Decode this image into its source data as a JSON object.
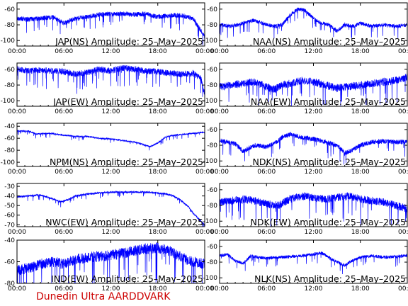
{
  "footer": "Dunedin Ultra AARDDVARK",
  "colors": {
    "trace": "#0000ff",
    "axes": "#000000",
    "footer": "#cc0000"
  },
  "x_tick_labels": [
    "00:00",
    "06:00",
    "12:00",
    "18:00",
    "00:00"
  ],
  "chart_data": [
    {
      "type": "line",
      "title": "JAP(NS) Amplitude: 25–May–2025",
      "ylim": [
        -107,
        -52
      ],
      "yticks": [
        -100,
        -80,
        -60
      ],
      "noise": 3.0,
      "series": [
        {
          "x": [
            0,
            1.5,
            3,
            4.5,
            6,
            7.5,
            9,
            10.5,
            12,
            13.5,
            15,
            16.5,
            18,
            19.5,
            21,
            22.5,
            24
          ],
          "y": [
            -72,
            -73,
            -72,
            -70,
            -78,
            -72,
            -70,
            -67,
            -66,
            -66,
            -67,
            -66,
            -70,
            -68,
            -68,
            -72,
            -95
          ]
        }
      ]
    },
    {
      "type": "line",
      "title": "NAA(NS) Amplitude: 25–May–2025",
      "ylim": [
        -107,
        -52
      ],
      "yticks": [
        -100,
        -80,
        -60
      ],
      "noise": 2.5,
      "series": [
        {
          "x": [
            0,
            1.5,
            3,
            4.5,
            6,
            7,
            8,
            9,
            10,
            11,
            12,
            13,
            14,
            15,
            16,
            17,
            18,
            19.5,
            21,
            22.5,
            24
          ],
          "y": [
            -80,
            -82,
            -78,
            -74,
            -80,
            -82,
            -80,
            -68,
            -60,
            -62,
            -72,
            -78,
            -80,
            -88,
            -80,
            -82,
            -78,
            -82,
            -80,
            -82,
            -80
          ]
        }
      ]
    },
    {
      "type": "line",
      "title": "JAP(EW) Amplitude: 25–May–2025",
      "ylim": [
        -107,
        -52
      ],
      "yticks": [
        -100,
        -80,
        -60
      ],
      "noise": 4.0,
      "series": [
        {
          "x": [
            0,
            1.5,
            3,
            4.5,
            6,
            7.5,
            9,
            10.5,
            12,
            13.5,
            15,
            16.5,
            18,
            19.5,
            21,
            22.5,
            23.5,
            24
          ],
          "y": [
            -60,
            -62,
            -61,
            -62,
            -63,
            -66,
            -64,
            -60,
            -62,
            -58,
            -60,
            -62,
            -63,
            -65,
            -66,
            -65,
            -72,
            -92
          ]
        }
      ]
    },
    {
      "type": "line",
      "title": "NAA(EW) Amplitude: 25–May–2025",
      "ylim": [
        -107,
        -52
      ],
      "yticks": [
        -100,
        -80,
        -60
      ],
      "noise": 5.0,
      "series": [
        {
          "x": [
            0,
            1.5,
            3,
            4.5,
            6,
            7,
            8,
            9,
            10.5,
            12,
            13.5,
            15,
            16.5,
            18,
            19.5,
            21,
            22.5,
            24
          ],
          "y": [
            -82,
            -80,
            -78,
            -76,
            -82,
            -86,
            -80,
            -78,
            -74,
            -76,
            -80,
            -84,
            -82,
            -80,
            -78,
            -76,
            -74,
            -70
          ]
        }
      ]
    },
    {
      "type": "line",
      "title": "NPM(NS) Amplitude: 25–May–2025",
      "ylim": [
        -107,
        -35
      ],
      "yticks": [
        -100,
        -80,
        -60,
        -40
      ],
      "noise": 1.2,
      "series": [
        {
          "x": [
            0,
            1.5,
            2.5,
            3.5,
            4.5,
            6,
            7.5,
            9,
            10.5,
            12,
            13.5,
            15,
            16,
            17,
            18,
            19,
            20,
            21,
            22.5,
            24
          ],
          "y": [
            -48,
            -48,
            -53,
            -52,
            -52,
            -55,
            -57,
            -57,
            -60,
            -61,
            -64,
            -66,
            -70,
            -74,
            -68,
            -58,
            -55,
            -54,
            -52,
            -50
          ]
        }
      ]
    },
    {
      "type": "line",
      "title": "NDK(NS) Amplitude: 25–May–2025",
      "ylim": [
        -107,
        -52
      ],
      "yticks": [
        -100,
        -80,
        -60
      ],
      "noise": 3.0,
      "series": [
        {
          "x": [
            0,
            1,
            2,
            3,
            4.5,
            6,
            7,
            8,
            9,
            10.5,
            12,
            13.5,
            15,
            16,
            17,
            18,
            19.5,
            21,
            22.5,
            24
          ],
          "y": [
            -74,
            -76,
            -78,
            -88,
            -80,
            -82,
            -78,
            -70,
            -66,
            -70,
            -72,
            -76,
            -80,
            -90,
            -86,
            -80,
            -76,
            -75,
            -76,
            -76
          ]
        }
      ]
    },
    {
      "type": "line",
      "title": "NWC(EW) Amplitude: 25–May–2025",
      "ylim": [
        -72,
        -27
      ],
      "yticks": [
        -70,
        -60,
        -50,
        -40,
        -30
      ],
      "noise": 1.0,
      "series": [
        {
          "x": [
            0,
            1.5,
            3,
            4.5,
            5.5,
            6.5,
            7.5,
            9,
            10.5,
            12,
            13.5,
            15,
            16.5,
            18,
            19,
            20,
            21,
            22,
            22.5,
            23,
            23.5,
            24
          ],
          "y": [
            -41,
            -40,
            -39,
            -43,
            -46,
            -44,
            -40,
            -38,
            -37,
            -36,
            -36,
            -36,
            -36,
            -37,
            -38,
            -40,
            -45,
            -52,
            -58,
            -62,
            -66,
            -70
          ]
        }
      ]
    },
    {
      "type": "line",
      "title": "NDK(EW) Amplitude: 25–May–2025",
      "ylim": [
        -107,
        -52
      ],
      "yticks": [
        -100,
        -80,
        -60
      ],
      "noise": 5.0,
      "series": [
        {
          "x": [
            0,
            1.5,
            3,
            4.5,
            6,
            7.5,
            9,
            10.5,
            12,
            13.5,
            15,
            16.5,
            18,
            19.5,
            21,
            22.5,
            24
          ],
          "y": [
            -76,
            -74,
            -72,
            -74,
            -78,
            -80,
            -72,
            -68,
            -70,
            -72,
            -70,
            -68,
            -72,
            -74,
            -76,
            -80,
            -84
          ]
        }
      ]
    },
    {
      "type": "line",
      "title": "IND(EW) Amplitude: 25–May–2025",
      "ylim": [
        -80,
        -40
      ],
      "yticks": [
        -80,
        -60,
        -40
      ],
      "noise": 5.0,
      "series": [
        {
          "x": [
            0,
            1.5,
            3,
            4.5,
            6,
            7.5,
            9,
            10.5,
            12,
            13.5,
            15,
            16.5,
            18,
            19.5,
            21,
            22.5,
            24
          ],
          "y": [
            -68,
            -66,
            -62,
            -60,
            -62,
            -58,
            -56,
            -55,
            -54,
            -52,
            -50,
            -48,
            -47,
            -50,
            -56,
            -60,
            -62
          ]
        }
      ]
    },
    {
      "type": "line",
      "title": "NLK(NS) Amplitude: 25–May–2025",
      "ylim": [
        -107,
        -52
      ],
      "yticks": [
        -100,
        -80,
        -60
      ],
      "noise": 2.0,
      "series": [
        {
          "x": [
            0,
            1,
            2,
            3,
            4,
            5,
            6,
            7.5,
            9,
            10.5,
            12,
            13,
            14,
            15,
            16,
            17,
            18,
            19.5,
            21,
            22.5,
            24
          ],
          "y": [
            -72,
            -70,
            -78,
            -82,
            -72,
            -74,
            -75,
            -74,
            -73,
            -72,
            -70,
            -68,
            -74,
            -80,
            -84,
            -78,
            -74,
            -72,
            -74,
            -73,
            -72
          ]
        }
      ]
    }
  ]
}
